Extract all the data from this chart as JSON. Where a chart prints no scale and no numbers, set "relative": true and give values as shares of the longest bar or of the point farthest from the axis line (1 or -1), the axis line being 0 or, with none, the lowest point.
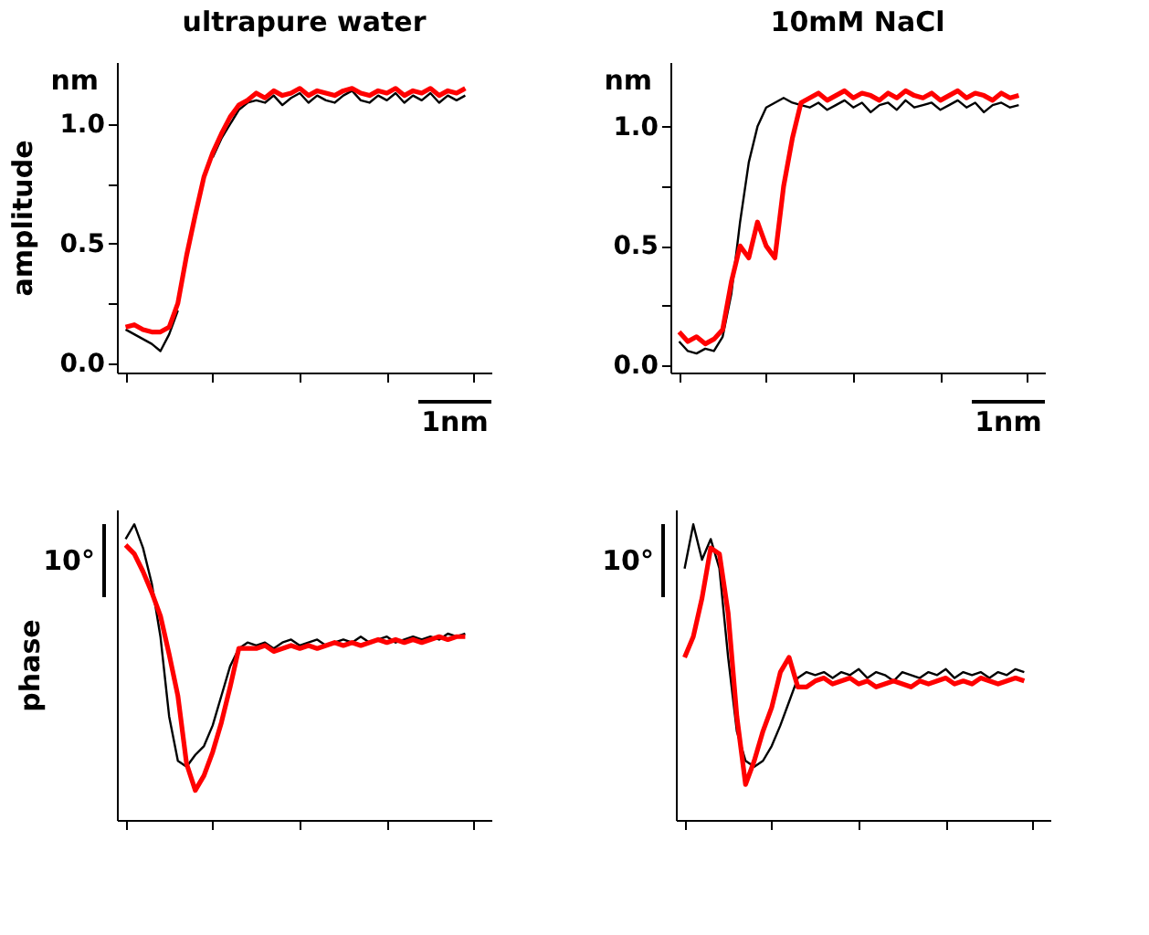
{
  "chart_data": [
    {
      "type": "line",
      "title": "ultrapure water",
      "ylabel": "amplitude",
      "annotations": [
        "nm",
        "1nm"
      ],
      "categories": [
        null,
        null,
        null,
        null,
        null,
        null,
        null,
        null,
        null,
        null,
        null,
        null,
        null,
        null,
        null,
        null,
        null,
        null,
        null,
        null,
        null,
        null,
        null,
        null,
        null,
        null,
        null,
        null,
        null,
        null,
        null,
        null,
        null,
        null,
        null,
        null,
        null,
        null,
        null,
        null
      ],
      "ylim": [
        -0.04,
        1.26
      ],
      "yticks": [
        {
          "value": 0,
          "label": "0.0"
        },
        {
          "value": 0.25,
          "label": null
        },
        {
          "value": 0.5,
          "label": "0.5"
        },
        {
          "value": 0.75,
          "label": null
        },
        {
          "value": 1,
          "label": "1.0"
        }
      ],
      "series": [
        {
          "color": "#000000",
          "values": [
            0.14,
            0.12,
            0.1,
            0.08,
            0.05,
            0.12,
            0.22,
            null,
            null,
            null,
            0.86,
            0.94,
            1.0,
            1.06,
            1.09,
            1.1,
            1.09,
            1.12,
            1.08,
            1.11,
            1.13,
            1.09,
            1.12,
            1.1,
            1.09,
            1.12,
            1.14,
            1.1,
            1.09,
            1.12,
            1.1,
            1.13,
            1.09,
            1.12,
            1.1,
            1.13,
            1.09,
            1.12,
            1.1,
            1.12
          ]
        },
        {
          "color": "#ff0000",
          "values": [
            0.15,
            0.16,
            0.14,
            0.13,
            0.13,
            0.15,
            0.25,
            0.45,
            0.62,
            0.78,
            0.88,
            0.96,
            1.03,
            1.08,
            1.1,
            1.13,
            1.11,
            1.14,
            1.12,
            1.13,
            1.15,
            1.12,
            1.14,
            1.13,
            1.12,
            1.14,
            1.15,
            1.13,
            1.12,
            1.14,
            1.13,
            1.15,
            1.12,
            1.14,
            1.13,
            1.15,
            1.12,
            1.14,
            1.13,
            1.15
          ]
        }
      ]
    },
    {
      "type": "line",
      "title": "10mM NaCl",
      "annotations": [
        "nm",
        "1nm"
      ],
      "categories": [
        null,
        null,
        null,
        null,
        null,
        null,
        null,
        null,
        null,
        null,
        null,
        null,
        null,
        null,
        null,
        null,
        null,
        null,
        null,
        null,
        null,
        null,
        null,
        null,
        null,
        null,
        null,
        null,
        null,
        null,
        null,
        null,
        null,
        null,
        null,
        null,
        null,
        null,
        null,
        null
      ],
      "ylim": [
        -0.03,
        1.27
      ],
      "yticks": [
        {
          "value": 0,
          "label": "0.0"
        },
        {
          "value": 0.25,
          "label": null
        },
        {
          "value": 0.5,
          "label": "0.5"
        },
        {
          "value": 0.75,
          "label": null
        },
        {
          "value": 1,
          "label": "1.0"
        }
      ],
      "series": [
        {
          "color": "#000000",
          "values": [
            0.1,
            0.06,
            0.05,
            0.07,
            0.06,
            0.12,
            0.3,
            0.6,
            0.85,
            1.0,
            1.08,
            1.1,
            1.12,
            1.1,
            1.09,
            1.08,
            1.1,
            1.07,
            1.09,
            1.11,
            1.08,
            1.1,
            1.06,
            1.09,
            1.1,
            1.07,
            1.11,
            1.08,
            1.09,
            1.1,
            1.07,
            1.09,
            1.11,
            1.08,
            1.1,
            1.06,
            1.09,
            1.1,
            1.08,
            1.09
          ]
        },
        {
          "color": "#ff0000",
          "values": [
            0.14,
            0.1,
            0.12,
            0.09,
            0.11,
            0.15,
            0.35,
            0.5,
            0.45,
            0.6,
            0.5,
            0.45,
            0.75,
            0.95,
            1.1,
            1.12,
            1.14,
            1.11,
            1.13,
            1.15,
            1.12,
            1.14,
            1.13,
            1.11,
            1.14,
            1.12,
            1.15,
            1.13,
            1.12,
            1.14,
            1.11,
            1.13,
            1.15,
            1.12,
            1.14,
            1.13,
            1.11,
            1.14,
            1.12,
            1.13
          ]
        }
      ]
    },
    {
      "type": "line",
      "ylabel": "phase",
      "relative": true,
      "annotations": [
        "10°"
      ],
      "categories": [
        null,
        null,
        null,
        null,
        null,
        null,
        null,
        null,
        null,
        null,
        null,
        null,
        null,
        null,
        null,
        null,
        null,
        null,
        null,
        null,
        null,
        null,
        null,
        null,
        null,
        null,
        null,
        null,
        null,
        null,
        null,
        null,
        null,
        null,
        null,
        null,
        null,
        null,
        null,
        null
      ],
      "series": [
        {
          "color": "#000000",
          "values": [
            0.95,
            1.0,
            0.92,
            0.8,
            0.62,
            0.35,
            0.2,
            0.18,
            0.22,
            0.25,
            0.32,
            0.42,
            0.52,
            0.58,
            0.6,
            0.59,
            0.6,
            0.58,
            0.6,
            0.61,
            0.59,
            0.6,
            0.61,
            0.59,
            0.6,
            0.61,
            0.6,
            0.62,
            0.6,
            0.61,
            0.62,
            0.6,
            0.61,
            0.62,
            0.61,
            0.62,
            0.61,
            0.63,
            0.62,
            0.63
          ]
        },
        {
          "color": "#ff0000",
          "values": [
            0.93,
            0.9,
            0.84,
            0.77,
            0.69,
            0.56,
            0.42,
            0.19,
            0.1,
            0.15,
            0.23,
            0.33,
            0.45,
            0.58,
            0.58,
            0.58,
            0.59,
            0.57,
            0.58,
            0.59,
            0.58,
            0.59,
            0.58,
            0.59,
            0.6,
            0.59,
            0.6,
            0.59,
            0.6,
            0.61,
            0.6,
            0.61,
            0.6,
            0.61,
            0.6,
            0.61,
            0.62,
            0.61,
            0.62,
            0.62
          ]
        }
      ]
    },
    {
      "type": "line",
      "relative": true,
      "annotations": [
        "10°"
      ],
      "categories": [
        null,
        null,
        null,
        null,
        null,
        null,
        null,
        null,
        null,
        null,
        null,
        null,
        null,
        null,
        null,
        null,
        null,
        null,
        null,
        null,
        null,
        null,
        null,
        null,
        null,
        null,
        null,
        null,
        null,
        null,
        null,
        null,
        null,
        null,
        null,
        null,
        null,
        null,
        null,
        null
      ],
      "series": [
        {
          "color": "#000000",
          "values": [
            0.85,
            1.0,
            0.88,
            0.95,
            0.85,
            0.55,
            0.3,
            0.2,
            0.18,
            0.2,
            0.25,
            0.32,
            0.4,
            0.48,
            0.5,
            0.49,
            0.5,
            0.48,
            0.5,
            0.49,
            0.51,
            0.48,
            0.5,
            0.49,
            0.47,
            0.5,
            0.49,
            0.48,
            0.5,
            0.49,
            0.51,
            0.48,
            0.5,
            0.49,
            0.5,
            0.48,
            0.5,
            0.49,
            0.51,
            0.5
          ]
        },
        {
          "color": "#ff0000",
          "values": [
            0.55,
            0.62,
            0.75,
            0.92,
            0.9,
            0.7,
            0.35,
            0.12,
            0.2,
            0.3,
            0.38,
            0.5,
            0.55,
            0.45,
            0.45,
            0.47,
            0.48,
            0.46,
            0.47,
            0.48,
            0.46,
            0.47,
            0.45,
            0.46,
            0.47,
            0.46,
            0.45,
            0.47,
            0.46,
            0.47,
            0.48,
            0.46,
            0.47,
            0.46,
            0.48,
            0.47,
            0.46,
            0.47,
            0.48,
            0.47
          ]
        }
      ]
    }
  ]
}
